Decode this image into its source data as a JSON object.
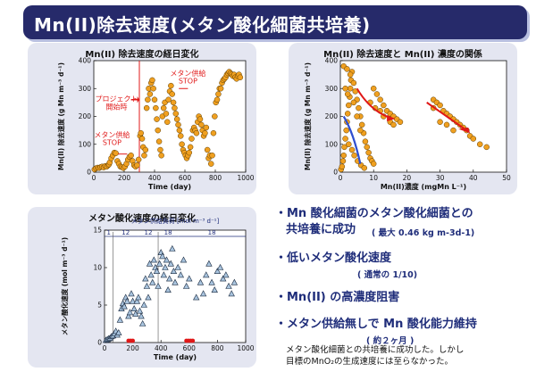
{
  "slide": {
    "title": "Mn(II)除去速度(メタン酸化細菌共培養)"
  },
  "panels": {
    "top_left": {
      "title": "Mn(II) 除去速度の経日変化",
      "annotations": {
        "project_start": "プロジェクト\n開始時",
        "methane_stop_1": "メタン供給\nSTOP",
        "methane_stop_2": "メタン供給\nSTOP"
      }
    },
    "top_right": {
      "title": "Mn(II) 除去速度と Mn(II) 濃度の関係"
    },
    "bottom_left": {
      "title": "メタン酸化速度の経日変化",
      "legend_label": "メタン供給負荷 [mol m⁻³ d⁻¹]",
      "load_segments": [
        "1",
        "12",
        "12",
        "18",
        "18"
      ]
    }
  },
  "bullets": [
    {
      "text": "・Mn 酸化細菌のメタン酸化細菌との",
      "line2": "共培養に成功",
      "sub": "( 最大 0.46 kg m-3d-1)"
    },
    {
      "text": "・低いメタン酸化速度",
      "sub": "( 通常の 1/10)"
    },
    {
      "text": "・Mn(II) の高濃度阻害"
    },
    {
      "text": "・メタン供給無しで Mn 酸化能力維持",
      "sub": "( 約２ヶ月 )"
    }
  ],
  "note": {
    "line1": "メタン酸化細菌との共培養に成功した。しかし",
    "line2": "目標のMnO₂の生成速度には至らなかった。"
  },
  "colors": {
    "title_bg": "#262a6a",
    "panel_bg": "#e4e6f1",
    "orange_marker": "#f0a020",
    "red_annotation": "#e01818",
    "blue_text": "#1f2d7a",
    "triangle_fill": "#a9c4de"
  },
  "chart_data": [
    {
      "type": "scatter",
      "title": "Mn(II) 除去速度の経日変化",
      "xlabel": "Time (day)",
      "ylabel": "Mn(II) 除去速度 (g Mn m⁻³ d⁻¹)",
      "xlim": [
        0,
        1000
      ],
      "ylim": [
        0,
        400
      ],
      "xticks": [
        0,
        200,
        400,
        600,
        800,
        1000
      ],
      "yticks": [
        0,
        100,
        200,
        300,
        400
      ],
      "points": [
        [
          5,
          10
        ],
        [
          15,
          14
        ],
        [
          25,
          16
        ],
        [
          35,
          15
        ],
        [
          45,
          18
        ],
        [
          55,
          20
        ],
        [
          65,
          17
        ],
        [
          75,
          22
        ],
        [
          85,
          20
        ],
        [
          95,
          25
        ],
        [
          100,
          28
        ],
        [
          105,
          35
        ],
        [
          115,
          50
        ],
        [
          125,
          60
        ],
        [
          135,
          70
        ],
        [
          145,
          68
        ],
        [
          155,
          40
        ],
        [
          165,
          30
        ],
        [
          175,
          20
        ],
        [
          185,
          18
        ],
        [
          195,
          15
        ],
        [
          205,
          20
        ],
        [
          215,
          30
        ],
        [
          225,
          45
        ],
        [
          235,
          55
        ],
        [
          245,
          60
        ],
        [
          255,
          40
        ],
        [
          265,
          25
        ],
        [
          275,
          20
        ],
        [
          285,
          25
        ],
        [
          295,
          45
        ],
        [
          305,
          130
        ],
        [
          310,
          140
        ],
        [
          318,
          120
        ],
        [
          325,
          90
        ],
        [
          332,
          60
        ],
        [
          340,
          80
        ],
        [
          348,
          230
        ],
        [
          355,
          260
        ],
        [
          362,
          300
        ],
        [
          370,
          280
        ],
        [
          378,
          320
        ],
        [
          385,
          330
        ],
        [
          392,
          300
        ],
        [
          400,
          260
        ],
        [
          408,
          230
        ],
        [
          415,
          190
        ],
        [
          422,
          150
        ],
        [
          430,
          110
        ],
        [
          438,
          80
        ],
        [
          445,
          60
        ],
        [
          452,
          200
        ],
        [
          460,
          230
        ],
        [
          468,
          250
        ],
        [
          476,
          210
        ],
        [
          484,
          180
        ],
        [
          492,
          260
        ],
        [
          500,
          290
        ],
        [
          508,
          310
        ],
        [
          516,
          280
        ],
        [
          524,
          250
        ],
        [
          532,
          230
        ],
        [
          540,
          210
        ],
        [
          548,
          190
        ],
        [
          556,
          170
        ],
        [
          564,
          150
        ],
        [
          572,
          130
        ],
        [
          580,
          100
        ],
        [
          588,
          80
        ],
        [
          596,
          70
        ],
        [
          604,
          60
        ],
        [
          612,
          50
        ],
        [
          620,
          60
        ],
        [
          628,
          70
        ],
        [
          636,
          90
        ],
        [
          644,
          120
        ],
        [
          652,
          150
        ],
        [
          660,
          160
        ],
        [
          668,
          150
        ],
        [
          676,
          140
        ],
        [
          684,
          180
        ],
        [
          692,
          200
        ],
        [
          700,
          190
        ],
        [
          708,
          170
        ],
        [
          716,
          150
        ],
        [
          724,
          130
        ],
        [
          732,
          140
        ],
        [
          740,
          160
        ],
        [
          748,
          80
        ],
        [
          756,
          50
        ],
        [
          764,
          60
        ],
        [
          772,
          30
        ],
        [
          780,
          60
        ],
        [
          788,
          140
        ],
        [
          796,
          200
        ],
        [
          804,
          250
        ],
        [
          812,
          260
        ],
        [
          820,
          280
        ],
        [
          828,
          300
        ],
        [
          836,
          300
        ],
        [
          844,
          320
        ],
        [
          852,
          330
        ],
        [
          860,
          335
        ],
        [
          868,
          340
        ],
        [
          876,
          350
        ],
        [
          884,
          355
        ],
        [
          892,
          360
        ],
        [
          900,
          355
        ],
        [
          908,
          350
        ],
        [
          916,
          345
        ],
        [
          924,
          350
        ],
        [
          932,
          340
        ],
        [
          940,
          335
        ],
        [
          948,
          345
        ],
        [
          956,
          350
        ],
        [
          964,
          340
        ]
      ]
    },
    {
      "type": "scatter",
      "title": "Mn(II) 除去速度と Mn(II) 濃度の関係",
      "xlabel": "Mn(II)濃度 (mgMn L⁻¹)",
      "ylabel": "Mn(II) 除去速度 (g Mn m⁻³ d⁻¹)",
      "xlim": [
        0,
        50
      ],
      "ylim": [
        0,
        400
      ],
      "xticks": [
        0,
        10,
        20,
        30,
        40,
        50
      ],
      "yticks": [
        0,
        100,
        200,
        300,
        400
      ],
      "points": [
        [
          0.2,
          10
        ],
        [
          0.5,
          20
        ],
        [
          0.8,
          40
        ],
        [
          1.0,
          60
        ],
        [
          1.2,
          90
        ],
        [
          1.5,
          120
        ],
        [
          1.8,
          150
        ],
        [
          2.0,
          180
        ],
        [
          2.2,
          210
        ],
        [
          2.5,
          240
        ],
        [
          2.8,
          270
        ],
        [
          3.0,
          300
        ],
        [
          3.2,
          330
        ],
        [
          3.5,
          360
        ],
        [
          1.0,
          380
        ],
        [
          2.0,
          370
        ],
        [
          3.0,
          350
        ],
        [
          4.0,
          320
        ],
        [
          4.5,
          290
        ],
        [
          5.0,
          260
        ],
        [
          5.5,
          230
        ],
        [
          6.0,
          200
        ],
        [
          6.5,
          170
        ],
        [
          7.0,
          140
        ],
        [
          7.5,
          110
        ],
        [
          8.0,
          90
        ],
        [
          8.5,
          70
        ],
        [
          9.0,
          50
        ],
        [
          9.5,
          40
        ],
        [
          10,
          30
        ],
        [
          2.5,
          100
        ],
        [
          3.5,
          80
        ],
        [
          4.2,
          60
        ],
        [
          5.2,
          40
        ],
        [
          6.2,
          25
        ],
        [
          7.2,
          15
        ],
        [
          1.5,
          300
        ],
        [
          2.2,
          280
        ],
        [
          4.0,
          250
        ],
        [
          5.0,
          200
        ],
        [
          6.0,
          150
        ],
        [
          10,
          300
        ],
        [
          11,
          280
        ],
        [
          12,
          260
        ],
        [
          13,
          240
        ],
        [
          14,
          220
        ],
        [
          15,
          210
        ],
        [
          16,
          200
        ],
        [
          17,
          190
        ],
        [
          18,
          180
        ],
        [
          12,
          220
        ],
        [
          13,
          200
        ],
        [
          15,
          180
        ],
        [
          16,
          170
        ],
        [
          9,
          250
        ],
        [
          10.5,
          230
        ],
        [
          28,
          260
        ],
        [
          29,
          250
        ],
        [
          30,
          240
        ],
        [
          31,
          220
        ],
        [
          32,
          210
        ],
        [
          33,
          200
        ],
        [
          34,
          190
        ],
        [
          35,
          180
        ],
        [
          36,
          170
        ],
        [
          37,
          160
        ],
        [
          38,
          150
        ],
        [
          39,
          130
        ],
        [
          40,
          120
        ],
        [
          42,
          100
        ],
        [
          44,
          90
        ],
        [
          30,
          180
        ],
        [
          32,
          170
        ],
        [
          34,
          150
        ],
        [
          28,
          230
        ]
      ]
    },
    {
      "type": "scatter",
      "title": "メタン酸化速度の経日変化",
      "xlabel": "Time (day)",
      "ylabel": "メタン酸化速度 (mol m⁻³ d⁻¹)",
      "xlim": [
        0,
        1000
      ],
      "ylim": [
        0,
        15
      ],
      "xticks": [
        0,
        200,
        400,
        600,
        800,
        1000
      ],
      "yticks": [
        0,
        5,
        10,
        15
      ],
      "series": [
        {
          "name": "methane",
          "marker": "triangle",
          "points": [
            [
              10,
              0.3
            ],
            [
              20,
              0.4
            ],
            [
              30,
              0.5
            ],
            [
              40,
              0.6
            ],
            [
              50,
              0.8
            ],
            [
              60,
              0.9
            ],
            [
              70,
              1.2
            ],
            [
              80,
              1.5
            ],
            [
              90,
              1.0
            ],
            [
              100,
              1.3
            ],
            [
              110,
              3.0
            ],
            [
              120,
              4.5
            ],
            [
              130,
              5.2
            ],
            [
              140,
              4.8
            ],
            [
              150,
              6.0
            ],
            [
              160,
              5.5
            ],
            [
              170,
              3.5
            ],
            [
              180,
              4.0
            ],
            [
              190,
              6.5
            ],
            [
              200,
              5.5
            ],
            [
              210,
              4.5
            ],
            [
              220,
              3.8
            ],
            [
              230,
              5.5
            ],
            [
              240,
              6.0
            ],
            [
              250,
              4.2
            ],
            [
              260,
              3.5
            ],
            [
              270,
              2.5
            ],
            [
              280,
              5.0
            ],
            [
              290,
              8.5
            ],
            [
              300,
              7.5
            ],
            [
              310,
              6.0
            ],
            [
              320,
              10.5
            ],
            [
              330,
              9.0
            ],
            [
              340,
              8.0
            ],
            [
              350,
              11.0
            ],
            [
              360,
              10.0
            ],
            [
              370,
              9.5
            ],
            [
              380,
              7.5
            ],
            [
              390,
              10.5
            ],
            [
              400,
              12.0
            ],
            [
              410,
              11.5
            ],
            [
              420,
              9.0
            ],
            [
              430,
              10.0
            ],
            [
              440,
              11.0
            ],
            [
              450,
              7.0
            ],
            [
              460,
              8.5
            ],
            [
              470,
              10.5
            ],
            [
              480,
              12.5
            ],
            [
              490,
              9.5
            ],
            [
              500,
              8.0
            ],
            [
              520,
              10.0
            ],
            [
              540,
              9.0
            ],
            [
              560,
              11.0
            ],
            [
              580,
              7.5
            ],
            [
              600,
              8.5
            ],
            [
              650,
              6.0
            ],
            [
              680,
              8.0
            ],
            [
              700,
              6.5
            ],
            [
              720,
              9.0
            ],
            [
              740,
              10.5
            ],
            [
              760,
              8.0
            ],
            [
              780,
              7.0
            ],
            [
              800,
              9.5
            ],
            [
              820,
              10.0
            ],
            [
              840,
              8.5
            ],
            [
              860,
              9.0
            ],
            [
              880,
              7.5
            ],
            [
              900,
              6.5
            ],
            [
              920,
              8.0
            ]
          ]
        },
        {
          "name": "stop",
          "marker": "red-dot",
          "points": [
            [
              170,
              0
            ],
            [
              185,
              0
            ],
            [
              200,
              0
            ],
            [
              580,
              0
            ],
            [
              595,
              0
            ],
            [
              610,
              0
            ],
            [
              625,
              0
            ]
          ]
        }
      ]
    }
  ]
}
